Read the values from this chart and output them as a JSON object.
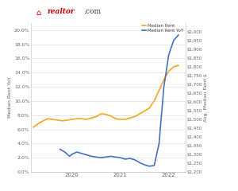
{
  "left_ylabel": "Median Rent YoY",
  "right_ylabel": "Avg. Median Rent $",
  "x_ticks": [
    "2020",
    "2021",
    "2022"
  ],
  "ylim_left": [
    0.0,
    0.21
  ],
  "ylim_right": [
    1200,
    2050
  ],
  "orange_color": "#F5A623",
  "blue_color": "#4472C4",
  "background_color": "#ffffff",
  "grid_color": "#e0e0e0",
  "orange_x": [
    2019.2,
    2019.3,
    2019.4,
    2019.5,
    2019.6,
    2019.7,
    2019.8,
    2019.9,
    2020.0,
    2020.1,
    2020.2,
    2020.3,
    2020.4,
    2020.5,
    2020.6,
    2020.7,
    2020.8,
    2020.9,
    2021.0,
    2021.1,
    2021.2,
    2021.3,
    2021.4,
    2021.5,
    2021.6,
    2021.7,
    2021.8,
    2021.9,
    2022.0,
    2022.1,
    2022.2
  ],
  "orange_y": [
    0.063,
    0.068,
    0.072,
    0.075,
    0.074,
    0.073,
    0.072,
    0.073,
    0.074,
    0.075,
    0.075,
    0.074,
    0.076,
    0.078,
    0.082,
    0.081,
    0.079,
    0.075,
    0.074,
    0.074,
    0.076,
    0.078,
    0.082,
    0.086,
    0.09,
    0.1,
    0.115,
    0.13,
    0.142,
    0.148,
    0.15
  ],
  "blue_x": [
    2019.75,
    2019.85,
    2019.95,
    2020.0,
    2020.1,
    2020.2,
    2020.3,
    2020.4,
    2020.5,
    2020.6,
    2020.7,
    2020.8,
    2020.9,
    2021.0,
    2021.1,
    2021.2,
    2021.3,
    2021.4,
    2021.5,
    2021.6,
    2021.7,
    2021.8,
    2021.9,
    2022.0,
    2022.1,
    2022.2
  ],
  "blue_y": [
    0.032,
    0.028,
    0.022,
    0.025,
    0.028,
    0.026,
    0.024,
    0.022,
    0.021,
    0.02,
    0.021,
    0.022,
    0.021,
    0.02,
    0.018,
    0.019,
    0.017,
    0.013,
    0.01,
    0.008,
    0.009,
    0.04,
    0.12,
    0.165,
    0.185,
    0.193
  ],
  "right_yticks": [
    1200,
    1250,
    1300,
    1350,
    1400,
    1450,
    1500,
    1550,
    1600,
    1650,
    1700,
    1750,
    1800,
    1850,
    1900,
    1950,
    2000
  ],
  "legend_orange": "Median Rent",
  "legend_blue": "Median Rent YoY"
}
